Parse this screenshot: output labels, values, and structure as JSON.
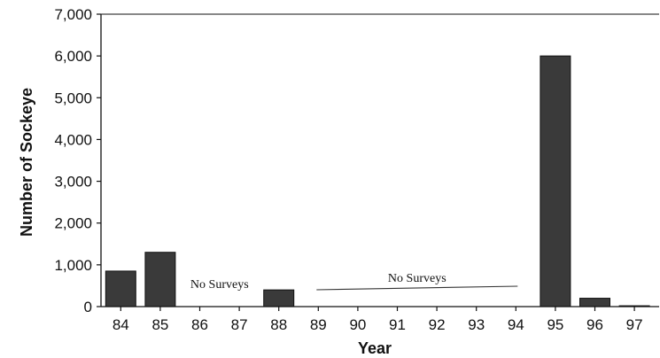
{
  "chart_data": {
    "type": "bar",
    "title": "",
    "xlabel": "Year",
    "ylabel": "Number of Sockeye",
    "ylim": [
      0,
      7000
    ],
    "yticks": [
      0,
      1000,
      2000,
      3000,
      4000,
      5000,
      6000,
      7000
    ],
    "ytick_labels": [
      "0",
      "1,000",
      "2,000",
      "3,000",
      "4,000",
      "5,000",
      "6,000",
      "7,000"
    ],
    "categories": [
      "84",
      "85",
      "86",
      "87",
      "88",
      "89",
      "90",
      "91",
      "92",
      "93",
      "94",
      "95",
      "96",
      "97"
    ],
    "values": [
      850,
      1300,
      null,
      null,
      400,
      null,
      null,
      null,
      null,
      null,
      null,
      6000,
      200,
      20
    ],
    "bar_color": "#3a3a3a",
    "grid": false,
    "annotations": [
      {
        "text": "No Surveys",
        "from": "86",
        "to": "87",
        "line": false
      },
      {
        "text": "No Surveys",
        "from": "89",
        "to": "94",
        "line": true
      }
    ]
  }
}
